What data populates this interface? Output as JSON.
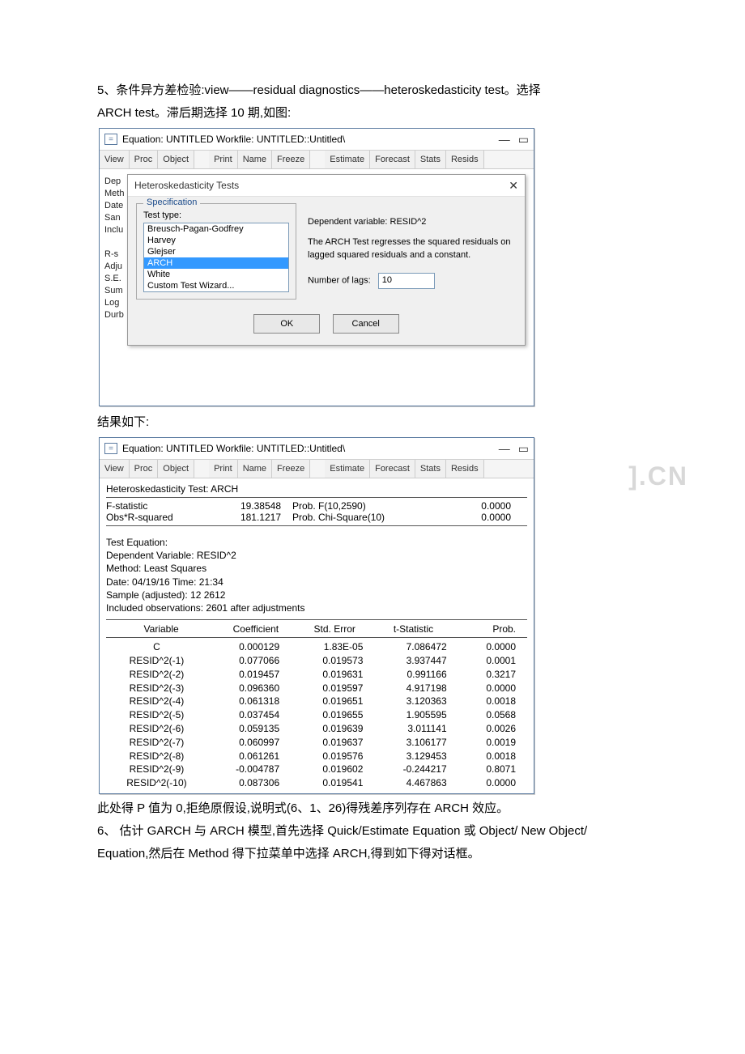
{
  "intro": {
    "line1": "5、条件异方差检验:view——residual diagnostics——heteroskedasticity test。选择",
    "line2": "ARCH test。滞后期选择 10 期,如图:"
  },
  "win1": {
    "title": "Equation: UNTITLED   Workfile: UNTITLED::Untitled\\",
    "toolbar": [
      "View",
      "Proc",
      "Object",
      "Print",
      "Name",
      "Freeze",
      "Estimate",
      "Forecast",
      "Stats",
      "Resids"
    ],
    "leftLabels": [
      "Dep",
      "Meth",
      "Date",
      "San",
      "Inclu",
      "",
      "R-s",
      "Adju",
      "S.E.",
      "Sum",
      "Log",
      "Durb"
    ],
    "dialog": {
      "title": "Heteroskedasticity Tests",
      "legend": "Specification",
      "testTypeLabel": "Test type:",
      "options": [
        "Breusch-Pagan-Godfrey",
        "Harvey",
        "Glejser",
        "ARCH",
        "White",
        "Custom Test Wizard..."
      ],
      "selectedIndex": 3,
      "desc1": "Dependent variable: RESID^2",
      "desc2": "The ARCH Test regresses the squared residuals on lagged squared residuals and a constant.",
      "lagsLabel": "Number of lags:",
      "lagsValue": "10",
      "ok": "OK",
      "cancel": "Cancel"
    }
  },
  "midText": "结果如下:",
  "win2": {
    "title": "Equation: UNTITLED   Workfile: UNTITLED::Untitled\\",
    "toolbar": [
      "View",
      "Proc",
      "Object",
      "Print",
      "Name",
      "Freeze",
      "Estimate",
      "Forecast",
      "Stats",
      "Resids"
    ],
    "testName": "Heteroskedasticity Test: ARCH",
    "stats": [
      {
        "l": "F-statistic",
        "v": "19.38548",
        "p": "Prob. F(10,2590)",
        "pv": "0.0000"
      },
      {
        "l": "Obs*R-squared",
        "v": "181.1217",
        "p": "Prob. Chi-Square(10)",
        "pv": "0.0000"
      }
    ],
    "eqinfo": [
      "Test Equation:",
      "Dependent Variable: RESID^2",
      "Method: Least Squares",
      "Date: 04/19/16   Time: 21:34",
      "Sample (adjusted): 12 2612",
      "Included observations: 2601 after adjustments"
    ],
    "coefHead": [
      "Variable",
      "Coefficient",
      "Std. Error",
      "t-Statistic",
      "Prob."
    ],
    "coefRows": [
      [
        "C",
        "0.000129",
        "1.83E-05",
        "7.086472",
        "0.0000"
      ],
      [
        "RESID^2(-1)",
        "0.077066",
        "0.019573",
        "3.937447",
        "0.0001"
      ],
      [
        "RESID^2(-2)",
        "0.019457",
        "0.019631",
        "0.991166",
        "0.3217"
      ],
      [
        "RESID^2(-3)",
        "0.096360",
        "0.019597",
        "4.917198",
        "0.0000"
      ],
      [
        "RESID^2(-4)",
        "0.061318",
        "0.019651",
        "3.120363",
        "0.0018"
      ],
      [
        "RESID^2(-5)",
        "0.037454",
        "0.019655",
        "1.905595",
        "0.0568"
      ],
      [
        "RESID^2(-6)",
        "0.059135",
        "0.019639",
        "3.011141",
        "0.0026"
      ],
      [
        "RESID^2(-7)",
        "0.060997",
        "0.019637",
        "3.106177",
        "0.0019"
      ],
      [
        "RESID^2(-8)",
        "0.061261",
        "0.019576",
        "3.129453",
        "0.0018"
      ],
      [
        "RESID^2(-9)",
        "-0.004787",
        "0.019602",
        "-0.244217",
        "0.8071"
      ],
      [
        "RESID^2(-10)",
        "0.087306",
        "0.019541",
        "4.467863",
        "0.0000"
      ]
    ]
  },
  "outro": {
    "line1": "此处得 P 值为 0,拒绝原假设,说明式(6、1、26)得残差序列存在 ARCH 效应。",
    "line2": "6、 估计 GARCH 与 ARCH 模型,首先选择 Quick/Estimate Equation 或 Object/   New Object/",
    "line3": "Equation,然后在 Method 得下拉菜单中选择 ARCH,得到如下得对话框。"
  },
  "watermark": "].CN"
}
